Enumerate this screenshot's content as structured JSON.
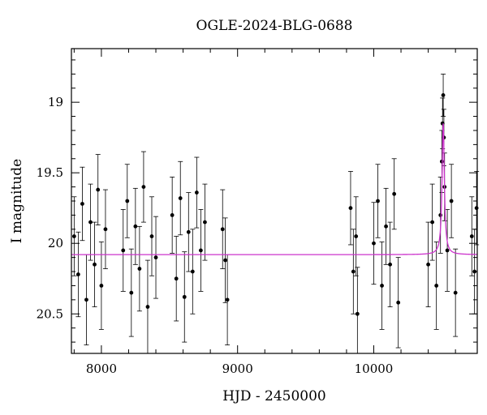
{
  "chart_data": {
    "type": "scatter",
    "title": "OGLE-2024-BLG-0688",
    "xlabel": "HJD - 2450000",
    "ylabel": "I magnitude",
    "xlim": [
      7780,
      10760
    ],
    "ylim": [
      20.78,
      18.62
    ],
    "y_inverted": true,
    "xticks": [
      8000,
      9000,
      10000
    ],
    "yticks": [
      19,
      19.5,
      20,
      20.5
    ],
    "grid": false,
    "series": [
      {
        "marker_color": "#000000",
        "points": [
          {
            "x": 7800,
            "y": 19.95,
            "err": 0.28
          },
          {
            "x": 7830,
            "y": 20.22,
            "err": 0.3
          },
          {
            "x": 7860,
            "y": 19.72,
            "err": 0.26
          },
          {
            "x": 7890,
            "y": 20.4,
            "err": 0.32
          },
          {
            "x": 7920,
            "y": 19.85,
            "err": 0.27
          },
          {
            "x": 7950,
            "y": 20.15,
            "err": 0.3
          },
          {
            "x": 7975,
            "y": 19.62,
            "err": 0.25
          },
          {
            "x": 8000,
            "y": 20.3,
            "err": 0.31
          },
          {
            "x": 8030,
            "y": 19.9,
            "err": 0.28
          },
          {
            "x": 8160,
            "y": 20.05,
            "err": 0.29
          },
          {
            "x": 8190,
            "y": 19.7,
            "err": 0.26
          },
          {
            "x": 8220,
            "y": 20.35,
            "err": 0.31
          },
          {
            "x": 8250,
            "y": 19.88,
            "err": 0.27
          },
          {
            "x": 8280,
            "y": 20.18,
            "err": 0.3
          },
          {
            "x": 8310,
            "y": 19.6,
            "err": 0.25
          },
          {
            "x": 8340,
            "y": 20.45,
            "err": 0.33
          },
          {
            "x": 8370,
            "y": 19.95,
            "err": 0.28
          },
          {
            "x": 8400,
            "y": 20.1,
            "err": 0.29
          },
          {
            "x": 8520,
            "y": 19.8,
            "err": 0.27
          },
          {
            "x": 8550,
            "y": 20.25,
            "err": 0.3
          },
          {
            "x": 8580,
            "y": 19.68,
            "err": 0.26
          },
          {
            "x": 8610,
            "y": 20.38,
            "err": 0.32
          },
          {
            "x": 8640,
            "y": 19.92,
            "err": 0.28
          },
          {
            "x": 8670,
            "y": 20.2,
            "err": 0.3
          },
          {
            "x": 8700,
            "y": 19.64,
            "err": 0.25
          },
          {
            "x": 8730,
            "y": 20.05,
            "err": 0.29
          },
          {
            "x": 8760,
            "y": 19.85,
            "err": 0.27
          },
          {
            "x": 8890,
            "y": 19.9,
            "err": 0.28
          },
          {
            "x": 8910,
            "y": 20.12,
            "err": 0.3
          },
          {
            "x": 8925,
            "y": 20.4,
            "err": 0.32
          },
          {
            "x": 9830,
            "y": 19.75,
            "err": 0.26
          },
          {
            "x": 9850,
            "y": 20.2,
            "err": 0.3
          },
          {
            "x": 9870,
            "y": 19.95,
            "err": 0.28
          },
          {
            "x": 9880,
            "y": 20.5,
            "err": 0.33
          },
          {
            "x": 10000,
            "y": 20.0,
            "err": 0.29
          },
          {
            "x": 10030,
            "y": 19.7,
            "err": 0.26
          },
          {
            "x": 10060,
            "y": 20.3,
            "err": 0.31
          },
          {
            "x": 10090,
            "y": 19.88,
            "err": 0.27
          },
          {
            "x": 10120,
            "y": 20.15,
            "err": 0.3
          },
          {
            "x": 10150,
            "y": 19.65,
            "err": 0.25
          },
          {
            "x": 10180,
            "y": 20.42,
            "err": 0.32
          },
          {
            "x": 10400,
            "y": 20.15,
            "err": 0.3
          },
          {
            "x": 10430,
            "y": 19.85,
            "err": 0.27
          },
          {
            "x": 10460,
            "y": 20.3,
            "err": 0.31
          },
          {
            "x": 10490,
            "y": 19.8,
            "err": 0.27
          },
          {
            "x": 10500,
            "y": 19.42,
            "err": 0.22
          },
          {
            "x": 10505,
            "y": 19.15,
            "err": 0.18
          },
          {
            "x": 10510,
            "y": 18.95,
            "err": 0.15
          },
          {
            "x": 10515,
            "y": 19.25,
            "err": 0.2
          },
          {
            "x": 10520,
            "y": 19.6,
            "err": 0.24
          },
          {
            "x": 10540,
            "y": 20.05,
            "err": 0.29
          },
          {
            "x": 10570,
            "y": 19.7,
            "err": 0.26
          },
          {
            "x": 10600,
            "y": 20.35,
            "err": 0.31
          },
          {
            "x": 10720,
            "y": 19.95,
            "err": 0.28
          },
          {
            "x": 10740,
            "y": 20.2,
            "err": 0.3
          },
          {
            "x": 10755,
            "y": 19.75,
            "err": 0.26
          }
        ]
      },
      {
        "line_color": "#cc33cc",
        "model": {
          "baseline": 20.08,
          "t0": 10510,
          "peak": 19.15,
          "tE": 10
        }
      }
    ]
  }
}
